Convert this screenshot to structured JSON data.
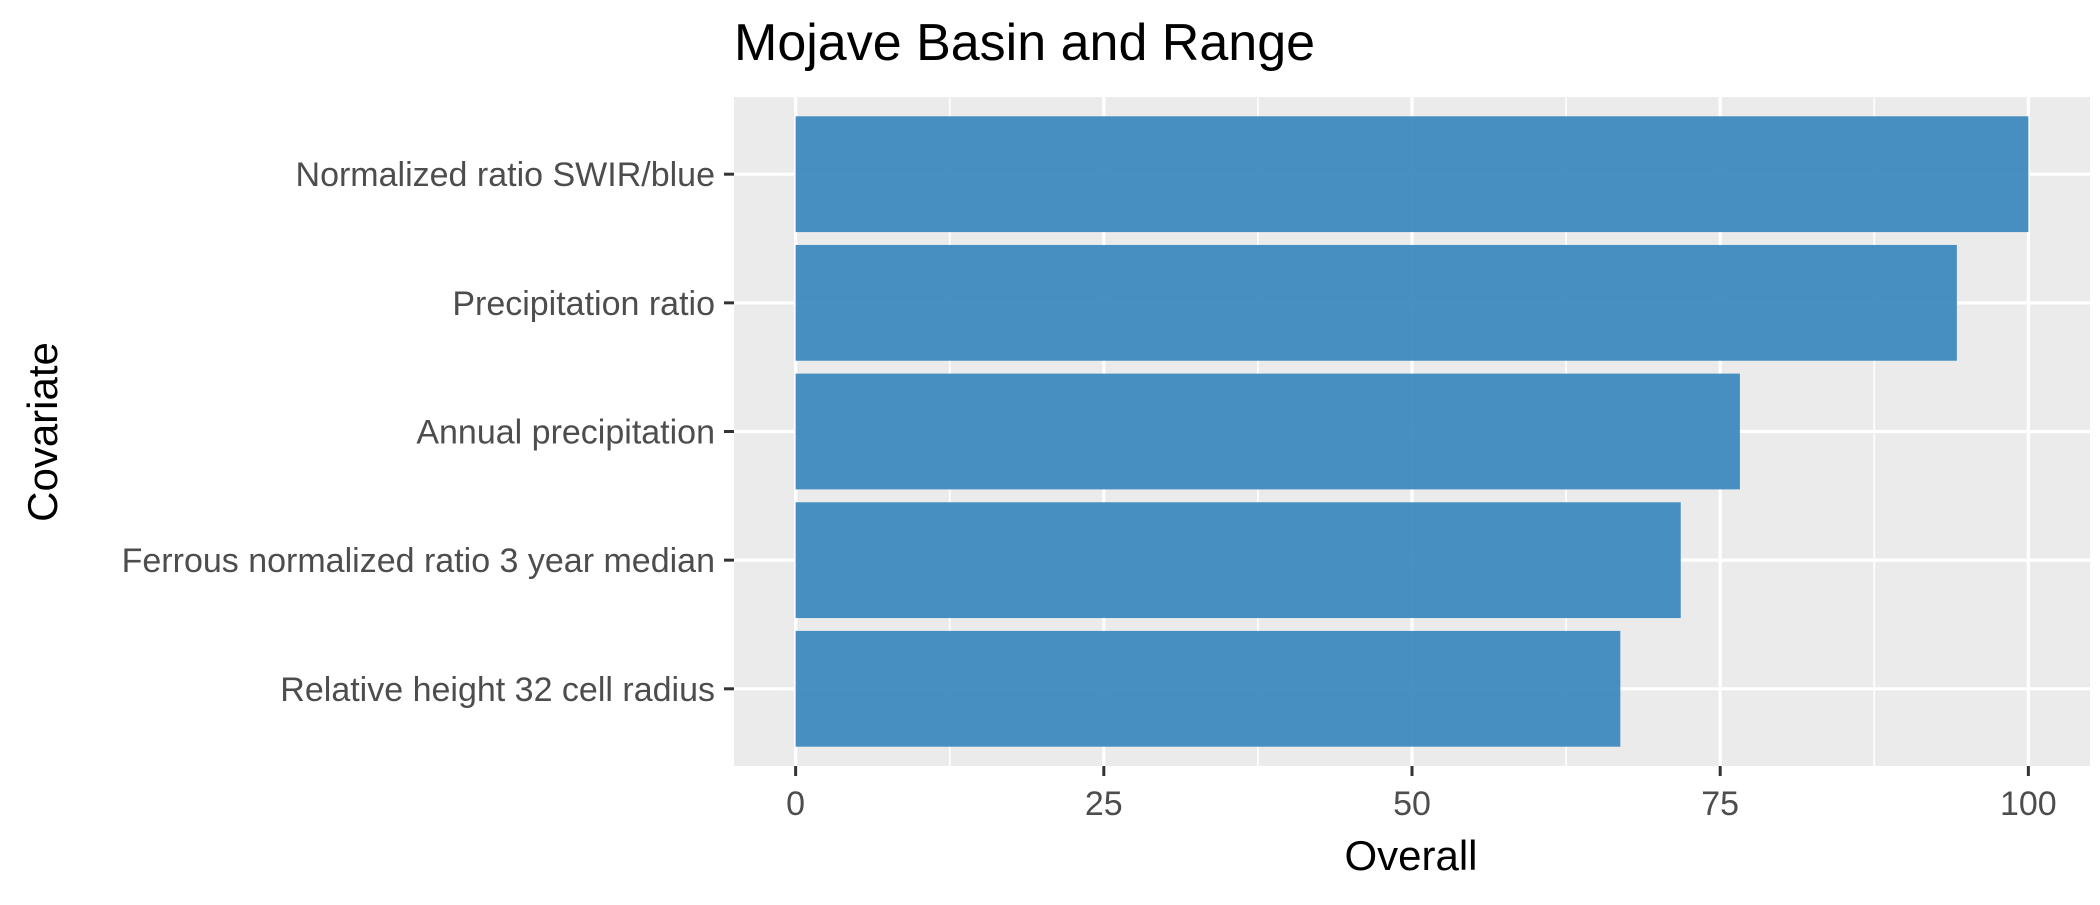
{
  "chart_data": {
    "type": "bar",
    "orientation": "horizontal",
    "title": "Mojave Basin and Range",
    "xlabel": "Overall",
    "ylabel": "Covariate",
    "categories": [
      "Normalized ratio SWIR/blue",
      "Precipitation ratio",
      "Annual precipitation",
      "Ferrous normalized ratio 3 year median",
      "Relative height 32 cell radius"
    ],
    "values": [
      100,
      94.2,
      76.6,
      71.8,
      66.9
    ],
    "xlim": [
      -5,
      105
    ],
    "xticks": [
      0,
      25,
      50,
      75,
      100
    ],
    "grid": true,
    "bar_color": "#3a87bd",
    "panel_background": "#ebebeb",
    "gridline_color": "#ffffff"
  }
}
